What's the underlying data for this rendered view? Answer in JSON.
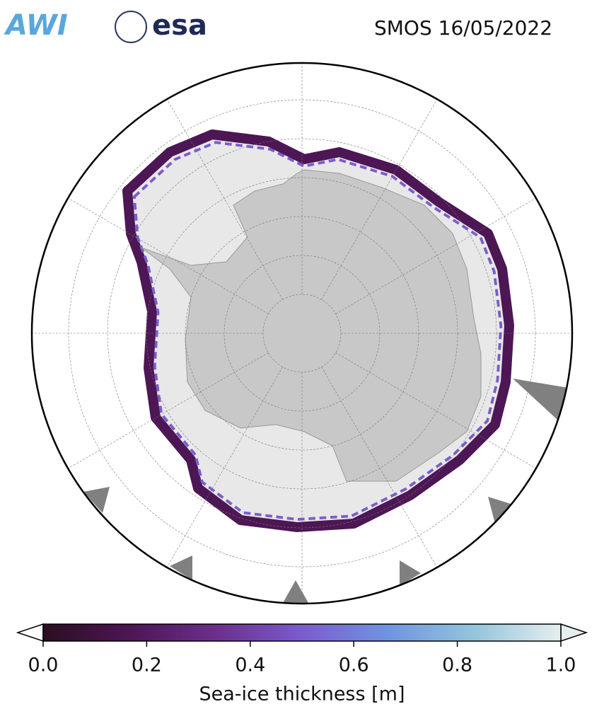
{
  "header": {
    "logos": [
      "AWI",
      "esa"
    ],
    "title": "SMOS 16/05/2022"
  },
  "colorbar": {
    "lim": [
      0,
      1
    ],
    "ticks": [
      {
        "value": 0,
        "label": "0.0"
      },
      0.2,
      0.4,
      0.6,
      0.8,
      {
        "value": 1,
        "label": "1.0"
      }
    ],
    "label": "Sea-ice thickness [m]",
    "colors": [
      "#2a0e22",
      "#4d1654",
      "#6b2f8c",
      "#7b5ccc",
      "#6f94e0",
      "#94c5dc",
      "#e6eeee"
    ]
  }
}
